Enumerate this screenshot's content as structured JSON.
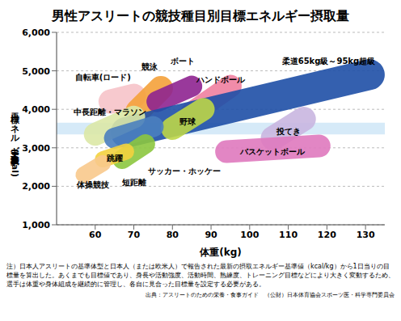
{
  "chart_data": {
    "type": "ellipse_scatter",
    "title": "男性アスリートの競技種目別目標エネルギー摂取量",
    "x_label": "体重(kg)",
    "y_label": "目標エネルギー摂取量(kcal)",
    "xlim": [
      50,
      135
    ],
    "xticks": [
      60,
      70,
      80,
      90,
      100,
      110,
      120,
      130
    ],
    "ylim": [
      1000,
      6000
    ],
    "yticks": [
      {
        "value": 1000,
        "label": "1,000"
      },
      {
        "value": 2000,
        "label": "2,000"
      },
      {
        "value": 3000,
        "label": "3,000"
      },
      {
        "value": 4000,
        "label": "4,000"
      },
      {
        "value": 5000,
        "label": "5,000"
      },
      {
        "value": 6000,
        "label": "6,000"
      }
    ],
    "grid": true,
    "band": [
      3350,
      3650
    ],
    "band_color": "#d6eaf8",
    "series": [
      {
        "name": "自転車(ロード)",
        "color": "#f6c3c9",
        "x": [
          64,
          70
        ],
        "values": [
          4200,
          4350
        ]
      },
      {
        "name": "競泳",
        "color": "#f4a13a",
        "x": [
          71,
          77
        ],
        "values": [
          3950,
          4550
        ]
      },
      {
        "name": "ボート",
        "color": "#8e2390",
        "x": [
          76,
          85
        ],
        "values": [
          4200,
          4600
        ]
      },
      {
        "name": "ハンドボール",
        "color": "#ef7fa0",
        "x": [
          85,
          95
        ],
        "values": [
          3900,
          4600
        ]
      },
      {
        "name": "柔道65kg級～95kg超級",
        "color": "#1e4fa6",
        "x": [
          68,
          131
        ],
        "values": [
          3400,
          4900
        ]
      },
      {
        "name": "中長距離・マラソン",
        "color": "#dbe8a6",
        "x": [
          60,
          70
        ],
        "values": [
          3350,
          3800
        ]
      },
      {
        "name": "野球",
        "color": "#bdd648",
        "x": [
          80,
          88
        ],
        "values": [
          3500,
          4000
        ]
      },
      {
        "name": "投てき",
        "color": "#c9b6e0",
        "x": [
          106,
          114
        ],
        "values": [
          3250,
          3750
        ]
      },
      {
        "name": "バスケットボール",
        "color": "#df79be",
        "x": [
          94,
          118
        ],
        "values": [
          2900,
          3050
        ]
      },
      {
        "name": "サッカー・ホッケー",
        "color": "#4a7fbf",
        "x": [
          65,
          75
        ],
        "values": [
          3250,
          3550
        ]
      },
      {
        "name": "短距離",
        "color": "#8cc63f",
        "x": [
          67,
          73
        ],
        "values": [
          2700,
          3100
        ]
      },
      {
        "name": "跳躍",
        "color": "#f3d13e",
        "x": [
          62,
          68
        ],
        "values": [
          2700,
          2900
        ]
      },
      {
        "name": "体操競技",
        "color": "#f8c98c",
        "x": [
          57,
          62
        ],
        "values": [
          2300,
          2600
        ]
      }
    ],
    "note": "注）日本人アスリートの基準体型と日本人（または欧米人）で報告された最新の摂取エネルギー基準値（kcal/kg）から1日当りの目標量を算出した。あくまでも目標値であり、身長や活動強度、活動時間、熟練度、トレーニング目標などにより大きく変動するため、選手は体重や身体組成を継続的に管理し、各自に見合った目標量を設定する必要がある。",
    "source": "出典：アスリートのための栄養・食事ガイド　（公財）日本体育協会スポーツ医・科学専門委員会"
  }
}
